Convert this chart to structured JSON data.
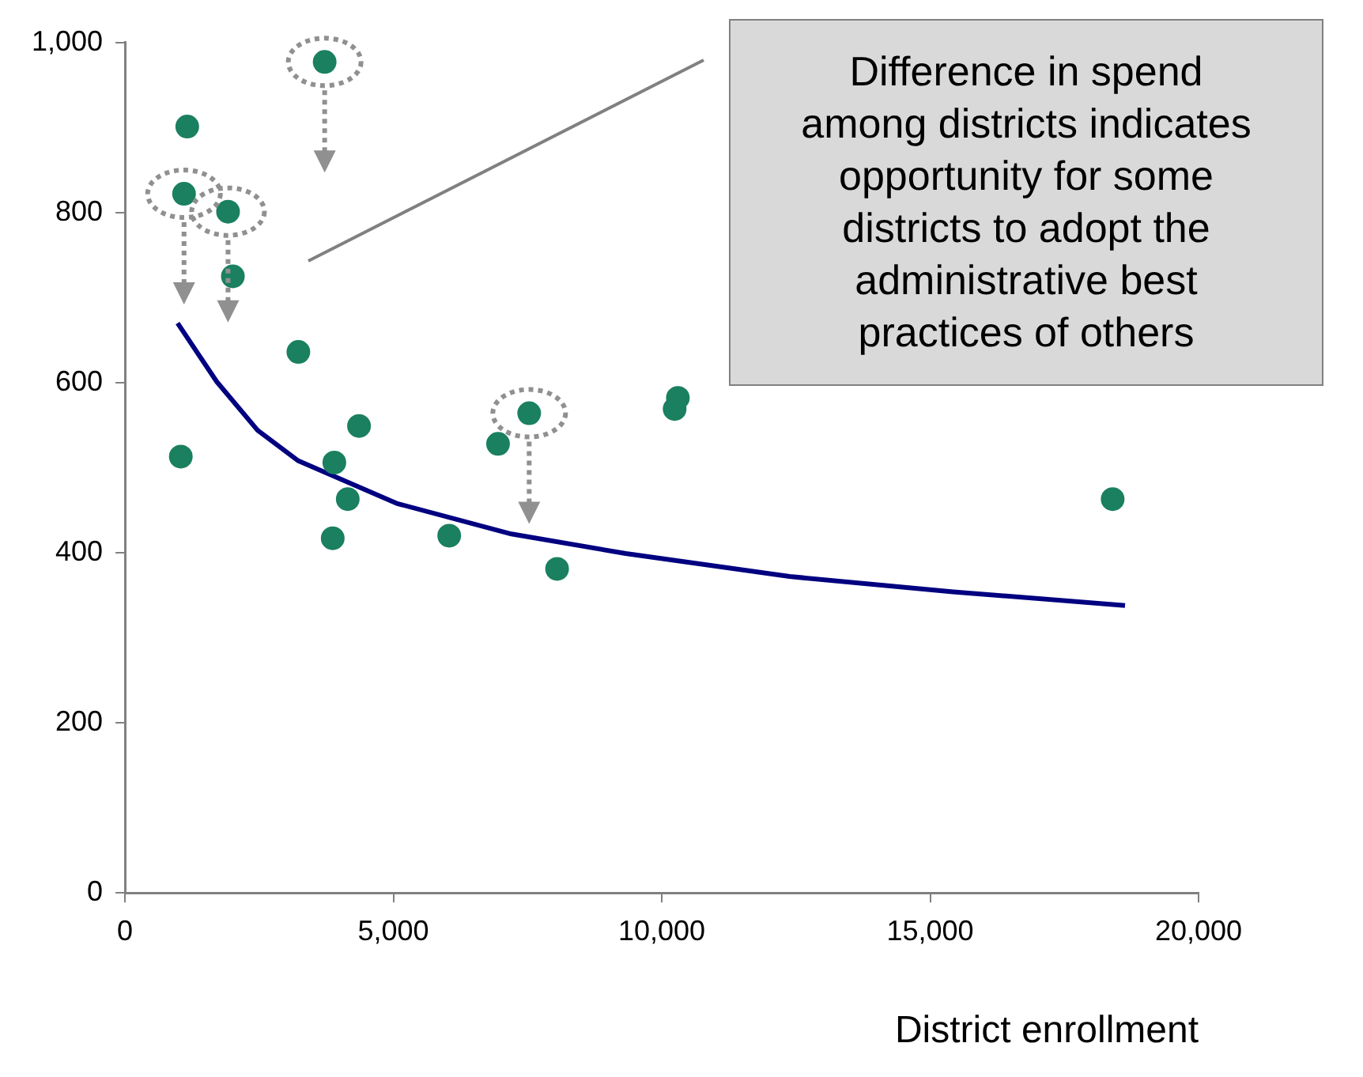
{
  "chart_data": {
    "type": "scatter",
    "xlabel": "District enrollment",
    "xlim": [
      0,
      20000
    ],
    "xticks": [
      {
        "value": 0,
        "label": "0"
      },
      {
        "value": 5000,
        "label": "5,000"
      },
      {
        "value": 10000,
        "label": "10,000"
      },
      {
        "value": 15000,
        "label": "15,000"
      },
      {
        "value": 20000,
        "label": "20,000"
      }
    ],
    "ylim": [
      0,
      1000
    ],
    "yticks": [
      0,
      200,
      400,
      600,
      800,
      {
        "value": 1000,
        "label": "1,000"
      }
    ],
    "grid": false,
    "legend": false,
    "annotations": [
      "Difference in spend among districts indicates opportunity for some districts to adopt the administrative best practices of others"
    ],
    "series": [
      {
        "type": "scatter",
        "marker": "circle",
        "color": "#1a8060",
        "x": [
          1160,
          1100,
          1920,
          2010,
          3720,
          3230,
          1040,
          3900,
          4360,
          4150,
          3870,
          6040,
          6950,
          7530,
          8050,
          10240,
          10300,
          18400
        ],
        "values": [
          901,
          822,
          801,
          725,
          977,
          636,
          513,
          506,
          549,
          463,
          417,
          420,
          528,
          564,
          381,
          569,
          582,
          463
        ]
      },
      {
        "type": "line",
        "color": "#000080",
        "x": [
          980,
          1710,
          2470,
          3230,
          5060,
          7200,
          9330,
          12380,
          15430,
          18630
        ],
        "values": [
          670,
          601,
          544,
          508,
          458,
          422,
          399,
          372,
          354,
          338
        ]
      }
    ]
  }
}
